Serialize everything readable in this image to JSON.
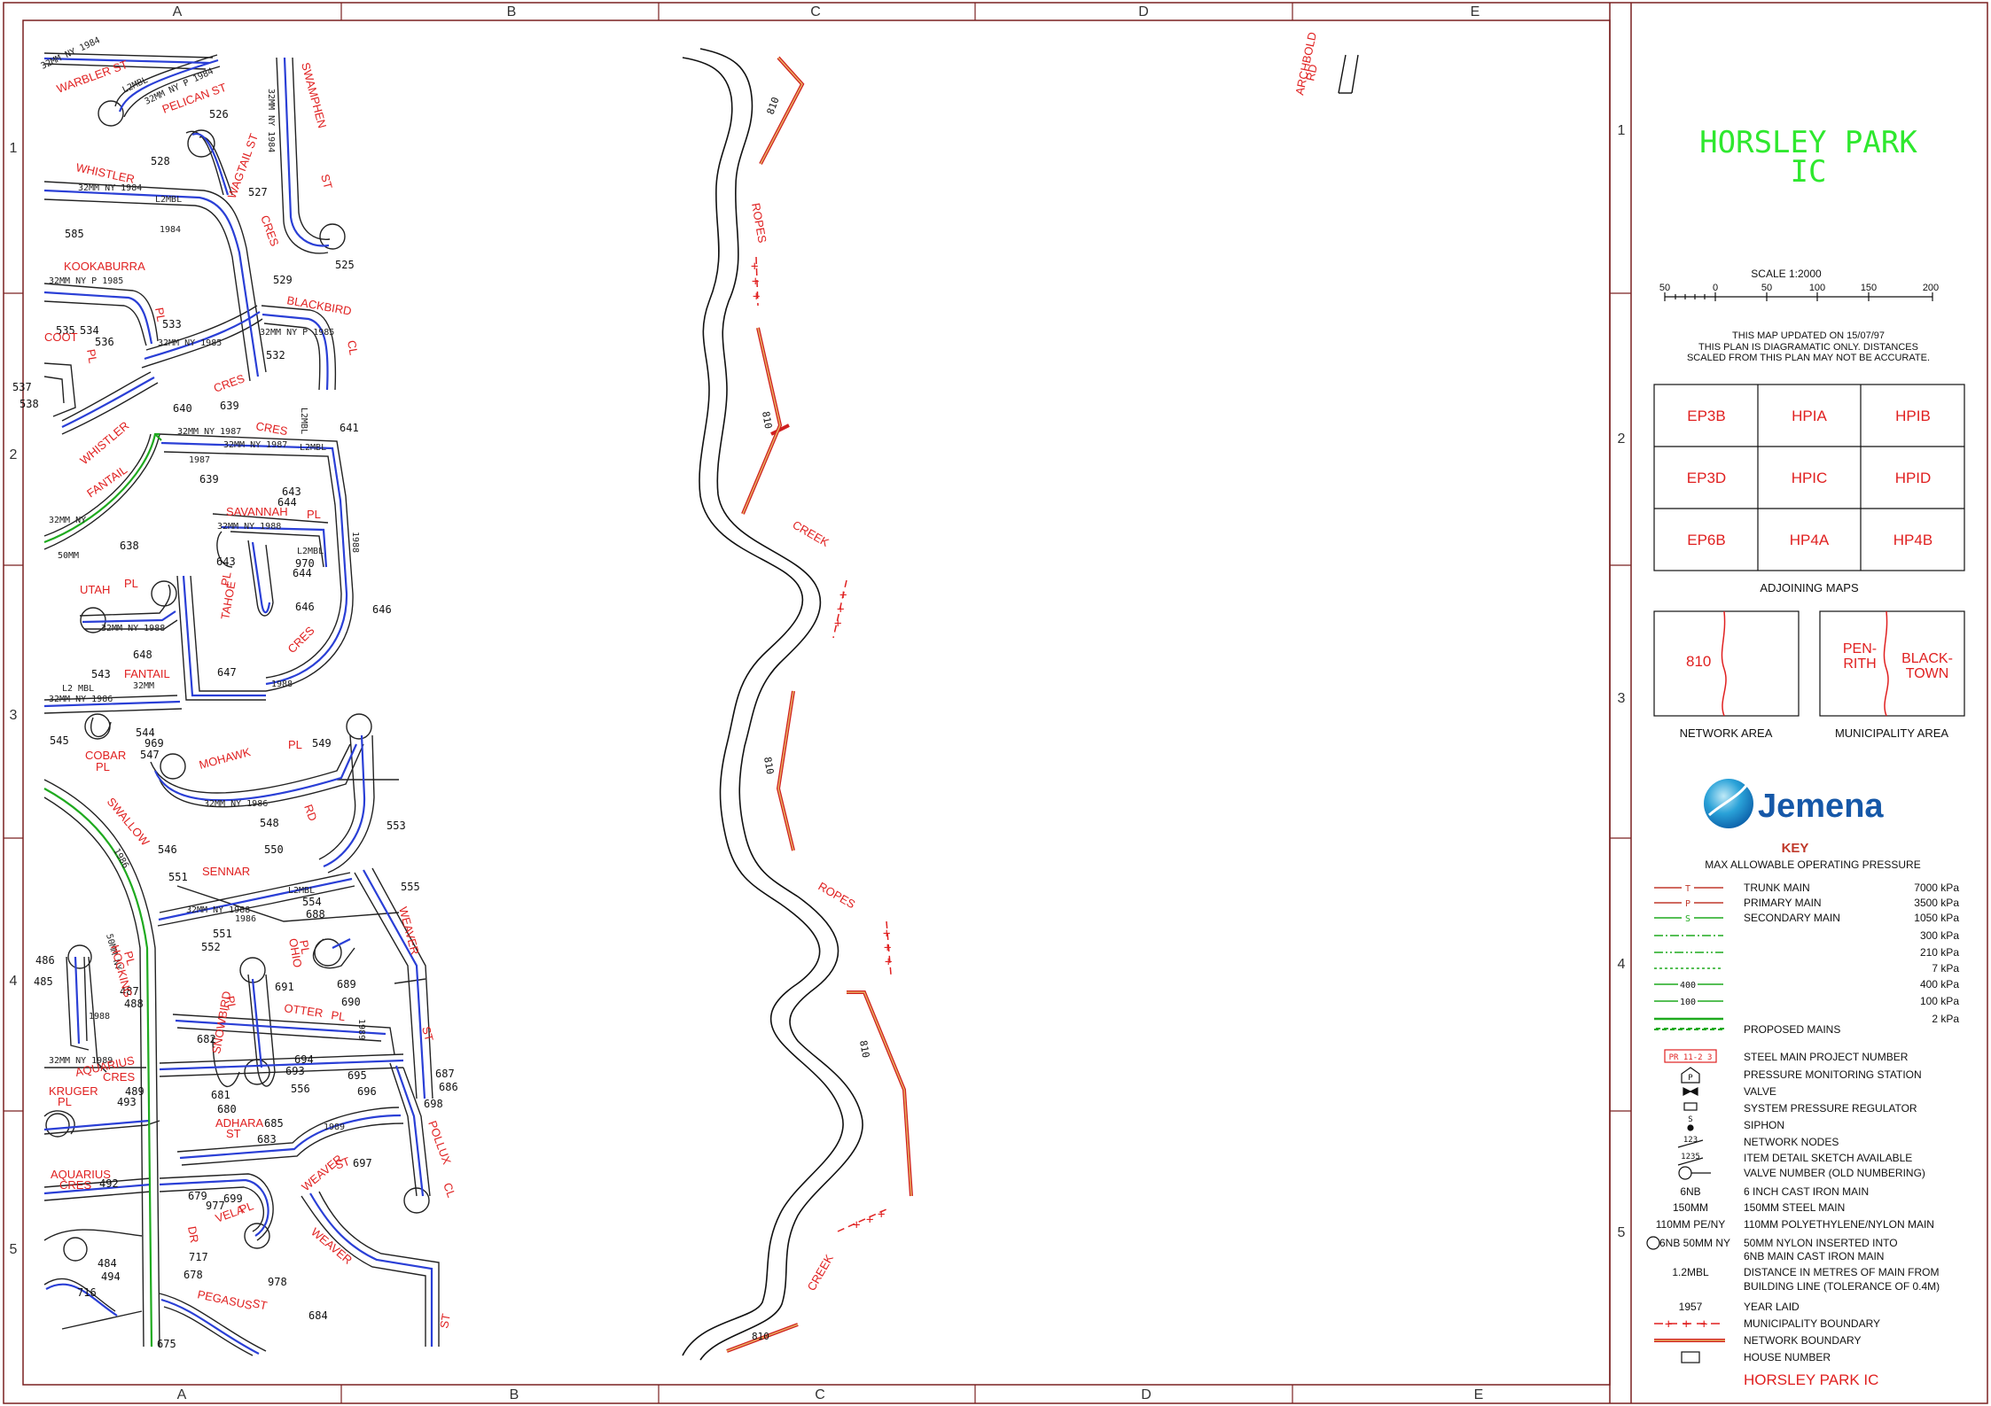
{
  "grid": {
    "columns": [
      "A",
      "B",
      "C",
      "D",
      "E"
    ],
    "rows": [
      "1",
      "2",
      "3",
      "4",
      "5"
    ]
  },
  "title_block": {
    "title_line1": "HORSLEY PARK",
    "title_line2": "IC",
    "scale_label": "SCALE 1:2000",
    "scale_ticks": [
      "50",
      "0",
      "50",
      "100",
      "150",
      "200"
    ],
    "updated_note": "THIS MAP UPDATED ON     15/07/97",
    "disclaimer_line1": "THIS PLAN IS DIAGRAMATIC ONLY. DISTANCES",
    "disclaimer_line2": "SCALED FROM THIS PLAN MAY NOT BE ACCURATE.",
    "adjoining_maps": [
      [
        "EP3B",
        "HPIA",
        "HPIB"
      ],
      [
        "EP3D",
        "HPIC",
        "HPID"
      ],
      [
        "EP6B",
        "HP4A",
        "HP4B"
      ]
    ],
    "adjoining_label": "ADJOINING MAPS",
    "network_area_value": "810",
    "network_area_label": "NETWORK AREA",
    "municipality_left": [
      "PEN-",
      "RITH"
    ],
    "municipality_right": [
      "BLACK-",
      "TOWN"
    ],
    "municipality_label": "MUNICIPALITY AREA",
    "logo_text": "Jemena",
    "key_title": "KEY",
    "key_subtitle": "MAX ALLOWABLE OPERATING PRESSURE",
    "pressure_items": [
      {
        "symbol": "T",
        "label": "TRUNK MAIN",
        "value": "7000 kPa",
        "color": "#c0392b"
      },
      {
        "symbol": "P",
        "label": "PRIMARY MAIN",
        "value": "3500 kPa",
        "color": "#c0392b"
      },
      {
        "symbol": "S",
        "label": "SECONDARY MAIN",
        "value": "1050 kPa",
        "color": "#1faa1f"
      },
      {
        "symbol": "",
        "label": "",
        "value": "300 kPa",
        "color": "#1faa1f"
      },
      {
        "symbol": "",
        "label": "",
        "value": "210 kPa",
        "color": "#1faa1f"
      },
      {
        "symbol": "",
        "label": "",
        "value": "7 kPa",
        "color": "#1faa1f"
      },
      {
        "symbol": "400",
        "label": "",
        "value": "400 kPa",
        "color": "#1faa1f"
      },
      {
        "symbol": "100",
        "label": "",
        "value": "100 kPa",
        "color": "#1faa1f"
      },
      {
        "symbol": "",
        "label": "",
        "value": "2 kPa",
        "color": "#1faa1f"
      }
    ],
    "legend_items": [
      {
        "sym": "",
        "label": "PROPOSED MAINS"
      },
      {
        "sym": "PR 11-2 3",
        "label": "STEEL MAIN PROJECT NUMBER"
      },
      {
        "sym": "P",
        "label": "PRESSURE MONITORING STATION"
      },
      {
        "sym": "",
        "label": "VALVE"
      },
      {
        "sym": "",
        "label": "SYSTEM PRESSURE REGULATOR"
      },
      {
        "sym": "S",
        "label": "SIPHON"
      },
      {
        "sym": "123",
        "label": "NETWORK NODES"
      },
      {
        "sym": "1235",
        "label": "ITEM DETAIL SKETCH AVAILABLE"
      },
      {
        "sym": "",
        "label": "VALVE NUMBER (OLD NUMBERING)"
      },
      {
        "sym": "6NB",
        "label": "6 INCH CAST IRON MAIN"
      },
      {
        "sym": "150MM",
        "label": "150MM STEEL MAIN"
      },
      {
        "sym": "110MM PE/NY",
        "label": "110MM POLYETHYLENE/NYLON MAIN"
      },
      {
        "sym": "6NB 50MM NY",
        "label": "50MM NYLON INSERTED INTO"
      },
      {
        "sym": "",
        "label": "6NB MAIN CAST IRON MAIN"
      },
      {
        "sym": "1.2MBL",
        "label": "DISTANCE IN METRES OF MAIN FROM"
      },
      {
        "sym": "",
        "label": "BUILDING LINE (TOLERANCE OF 0.4M)"
      },
      {
        "sym": "1957",
        "label": "YEAR LAID"
      },
      {
        "sym": "",
        "label": "MUNICIPALITY BOUNDARY"
      },
      {
        "sym": "",
        "label": "NETWORK BOUNDARY"
      },
      {
        "sym": "",
        "label": "HOUSE NUMBER"
      }
    ],
    "footer_title": "HORSLEY PARK IC"
  },
  "map": {
    "streets": [
      "WARBLER ST",
      "PELICAN ST",
      "SWAMPHEN",
      "ST",
      "WHISTLER",
      "WAGTAIL ST",
      "CRES",
      "KOOKABURRA",
      "PL",
      "BLACKBIRD",
      "CL",
      "COOT",
      "PL",
      "CRES",
      "WHISTLER",
      "FANTAIL",
      "CRES",
      "SAVANNAH",
      "PL",
      "UTAH",
      "PL",
      "TAHOE",
      "PL",
      "CRES",
      "FANTAIL",
      "COBAR",
      "PL",
      "MOHAWK",
      "PL",
      "RD",
      "SWALLOW",
      "SENNAR",
      "HOCKING",
      "PL",
      "OHIO",
      "PL",
      "WEAVER",
      "ST",
      "OTTER",
      "PL",
      "PL",
      "AQUARIUS",
      "CRES",
      "KRUGER",
      "PL",
      "SNOWBIRD",
      "ADHARA",
      "ST",
      "POLLUX",
      "CL",
      "AQUARIUS",
      "CRES",
      "DR",
      "VELA",
      "PL",
      "WEAVER",
      "ST",
      "WEAVER",
      "PEGASUS",
      "ST",
      "ST",
      "ARCHBOLD",
      "RD",
      "ROPES",
      "CREEK",
      "ROPES",
      "CREEK"
    ],
    "house_numbers": [
      "526",
      "528",
      "527",
      "525",
      "585",
      "529",
      "533",
      "534",
      "535",
      "536",
      "532",
      "537",
      "538",
      "640",
      "639",
      "641",
      "639",
      "643",
      "644",
      "638",
      "643",
      "970",
      "644",
      "646",
      "646",
      "648",
      "647",
      "543",
      "545",
      "544",
      "969",
      "547",
      "549",
      "548",
      "553",
      "546",
      "550",
      "551",
      "555",
      "554",
      "688",
      "551",
      "552",
      "486",
      "485",
      "487",
      "488",
      "691",
      "689",
      "690",
      "682",
      "694",
      "693",
      "695",
      "696",
      "687",
      "686",
      "698",
      "489",
      "493",
      "681",
      "556",
      "680",
      "685",
      "683",
      "697",
      "492",
      "679",
      "977",
      "699",
      "484",
      "494",
      "716",
      "717",
      "678",
      "978",
      "684",
      "675"
    ],
    "pipe_labels": [
      "32MM NY 1984",
      "L2MBL",
      "32MM NY P 1984",
      "32MM NY 1984",
      "1984",
      "L2MBL",
      "32MM NY 1984",
      "32MM NY P 1985",
      "32MM NY 1985",
      "32MM NY P 1985",
      "L2MBL",
      "32MM NY 1987",
      "32MM NY 1987",
      "L2MBL",
      "1987",
      "32MM NY",
      "50MM",
      "32MM NY 1988",
      "L2MBL",
      "1988",
      "32MM NY 1988",
      "L2 MBL",
      "32MM NY 1986",
      "32MM",
      "1988",
      "32MM NY 1986",
      "1986",
      "32MM NY 1988",
      "L2MBL",
      "1989",
      "32MM NY 1989",
      "50MM NY",
      "1986",
      "1988",
      "1989"
    ],
    "network_area_labels": [
      "810",
      "810",
      "810",
      "810",
      "810"
    ]
  }
}
